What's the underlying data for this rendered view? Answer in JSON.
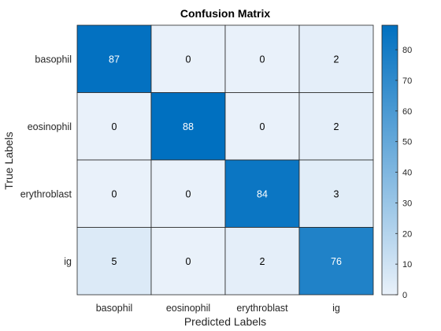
{
  "chart_data": {
    "type": "heatmap",
    "title": "Confusion Matrix",
    "xlabel": "Predicted Labels",
    "ylabel": "True Labels",
    "x_categories": [
      "basophil",
      "eosinophil",
      "erythroblast",
      "ig"
    ],
    "y_categories": [
      "basophil",
      "eosinophil",
      "erythroblast",
      "ig"
    ],
    "values": [
      [
        87,
        0,
        0,
        2
      ],
      [
        0,
        88,
        0,
        2
      ],
      [
        0,
        0,
        84,
        3
      ],
      [
        5,
        0,
        2,
        76
      ]
    ],
    "colorbar": {
      "range": [
        0,
        88
      ],
      "ticks": [
        0,
        10,
        20,
        30,
        40,
        50,
        60,
        70,
        80
      ]
    },
    "colors": {
      "low": "#e9f1fa",
      "high": "#0070c0",
      "light_text": "#ffffff",
      "dark_text": "#000000",
      "grid": "#262626"
    }
  }
}
